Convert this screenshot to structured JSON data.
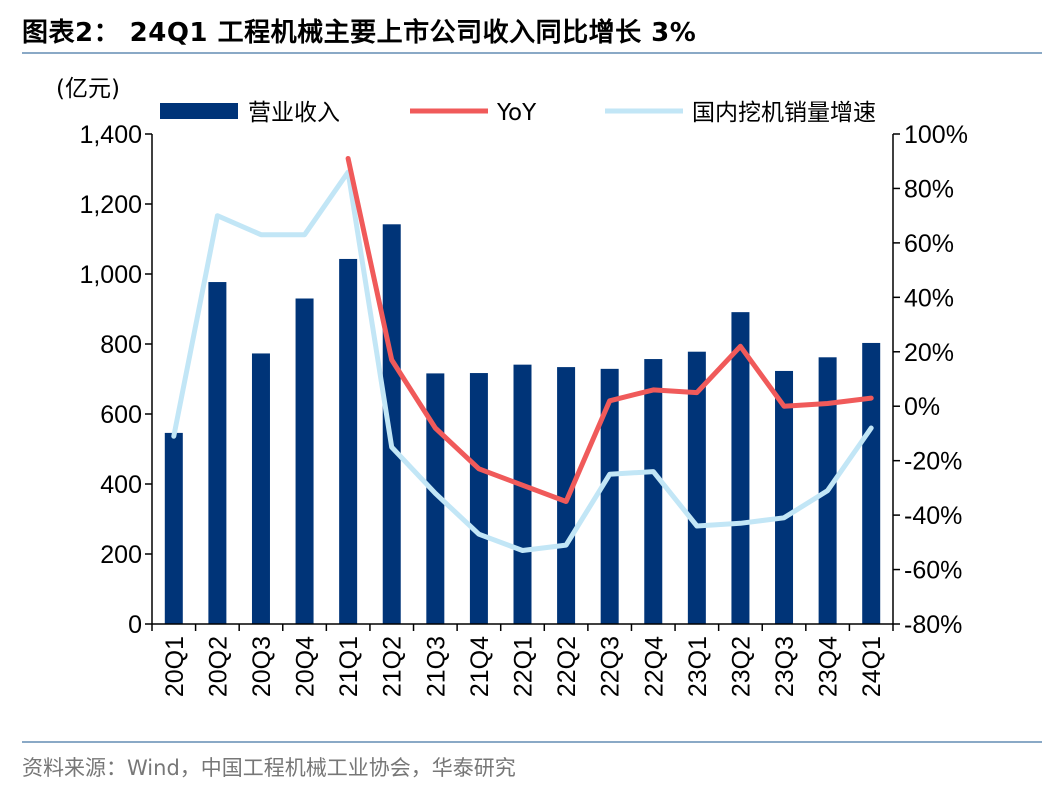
{
  "title": "图表2： 24Q1 工程机械主要上市公司收入同比增长 3%",
  "source": "资料来源：Wind，中国工程机械工业协会，华泰研究",
  "chart_data": {
    "type": "bar",
    "unit_label": "(亿元)",
    "categories": [
      "20Q1",
      "20Q2",
      "20Q3",
      "20Q4",
      "21Q1",
      "21Q2",
      "21Q3",
      "21Q4",
      "22Q1",
      "22Q2",
      "22Q3",
      "22Q4",
      "23Q1",
      "23Q2",
      "23Q3",
      "23Q4",
      "24Q1"
    ],
    "y_left": {
      "min": 0,
      "max": 1400,
      "ticks": [
        "0",
        "200",
        "400",
        "600",
        "800",
        "1,000",
        "1,200",
        "1,400"
      ]
    },
    "y_right": {
      "min": -80,
      "max": 100,
      "ticks": [
        "-80%",
        "-60%",
        "-40%",
        "-20%",
        "0%",
        "20%",
        "40%",
        "60%",
        "80%",
        "100%"
      ]
    },
    "grid": false,
    "legend_position": "top",
    "series": [
      {
        "name": "营业收入",
        "kind": "bar",
        "axis": "left",
        "color": "#003478",
        "values": [
          546,
          977,
          773,
          930,
          1043,
          1142,
          716,
          717,
          741,
          734,
          729,
          757,
          778,
          891,
          723,
          762,
          803
        ]
      },
      {
        "name": "YoY",
        "kind": "line",
        "axis": "right",
        "color": "#f05a5a",
        "values": [
          null,
          null,
          null,
          null,
          91,
          17,
          -8,
          -23,
          -29,
          -35,
          2,
          6,
          5,
          22,
          0,
          1,
          3
        ]
      },
      {
        "name": "国内挖机销量增速",
        "kind": "line",
        "axis": "right",
        "color": "#c2e6f6",
        "values": [
          -11,
          70,
          63,
          63,
          86,
          -15,
          -32,
          -47,
          -53,
          -51,
          -25,
          -24,
          -44,
          -43,
          -41,
          -31,
          -8
        ]
      }
    ]
  }
}
